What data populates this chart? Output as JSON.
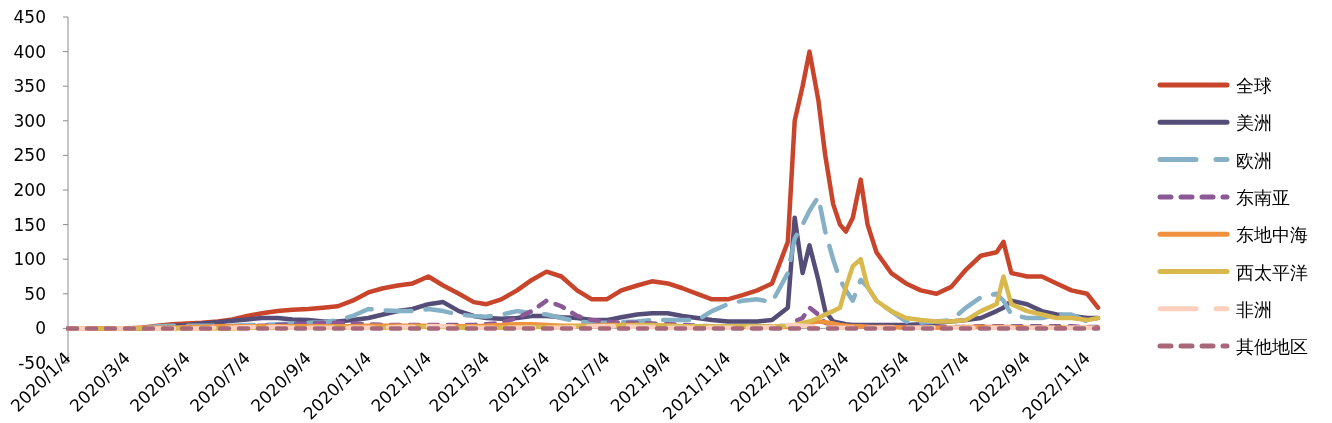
{
  "chart_data": {
    "type": "line",
    "x": [
      "2020-01-04",
      "2020-01-19",
      "2020-02-04",
      "2020-02-19",
      "2020-03-04",
      "2020-03-19",
      "2020-04-04",
      "2020-04-19",
      "2020-05-04",
      "2020-05-19",
      "2020-06-04",
      "2020-06-19",
      "2020-07-04",
      "2020-07-19",
      "2020-08-04",
      "2020-08-19",
      "2020-09-04",
      "2020-09-19",
      "2020-10-04",
      "2020-10-19",
      "2020-11-04",
      "2020-11-19",
      "2020-12-04",
      "2020-12-19",
      "2021-01-04",
      "2021-01-19",
      "2021-02-04",
      "2021-02-19",
      "2021-03-04",
      "2021-03-19",
      "2021-04-04",
      "2021-04-19",
      "2021-05-04",
      "2021-05-19",
      "2021-06-04",
      "2021-06-19",
      "2021-07-04",
      "2021-07-19",
      "2021-08-04",
      "2021-08-19",
      "2021-09-04",
      "2021-09-19",
      "2021-10-04",
      "2021-10-19",
      "2021-11-04",
      "2021-11-19",
      "2021-12-04",
      "2021-12-19",
      "2022-01-04",
      "2022-01-11",
      "2022-01-19",
      "2022-01-26",
      "2022-02-04",
      "2022-02-11",
      "2022-02-19",
      "2022-02-26",
      "2022-03-04",
      "2022-03-11",
      "2022-03-19",
      "2022-03-26",
      "2022-04-04",
      "2022-04-19",
      "2022-05-04",
      "2022-05-19",
      "2022-06-04",
      "2022-06-19",
      "2022-07-04",
      "2022-07-19",
      "2022-08-04",
      "2022-08-11",
      "2022-08-19",
      "2022-09-04",
      "2022-09-19",
      "2022-10-04",
      "2022-10-19",
      "2022-11-04",
      "2022-11-15"
    ],
    "series": [
      {
        "name": "全球",
        "color": "#c8442a",
        "line_style": "solid",
        "values": [
          0,
          0,
          0,
          0,
          0,
          1,
          4,
          6,
          7,
          8,
          10,
          13,
          18,
          22,
          25,
          27,
          28,
          30,
          32,
          40,
          52,
          58,
          62,
          65,
          75,
          62,
          50,
          38,
          35,
          42,
          55,
          70,
          82,
          75,
          55,
          42,
          42,
          55,
          62,
          68,
          65,
          58,
          50,
          42,
          42,
          48,
          55,
          65,
          125,
          300,
          350,
          400,
          330,
          250,
          180,
          150,
          140,
          160,
          215,
          150,
          110,
          80,
          65,
          55,
          50,
          60,
          85,
          105,
          110,
          125,
          80,
          75,
          75,
          65,
          55,
          50,
          30
        ]
      },
      {
        "name": "美洲",
        "color": "#544d78",
        "line_style": "solid",
        "values": [
          0,
          0,
          0,
          0,
          0,
          0,
          2,
          4,
          5,
          7,
          9,
          11,
          13,
          15,
          15,
          13,
          12,
          10,
          10,
          12,
          15,
          20,
          25,
          28,
          35,
          38,
          25,
          18,
          15,
          14,
          15,
          18,
          18,
          16,
          15,
          12,
          12,
          16,
          20,
          22,
          22,
          18,
          15,
          12,
          10,
          10,
          10,
          12,
          30,
          160,
          80,
          120,
          70,
          25,
          10,
          8,
          6,
          5,
          5,
          5,
          5,
          5,
          5,
          6,
          8,
          10,
          12,
          15,
          25,
          30,
          40,
          35,
          25,
          20,
          18,
          15,
          15
        ]
      },
      {
        "name": "欧洲",
        "color": "#85b0c6",
        "line_style": "dashed",
        "values": [
          0,
          0,
          0,
          0,
          0,
          1,
          3,
          4,
          4,
          4,
          4,
          4,
          5,
          5,
          6,
          7,
          8,
          9,
          12,
          18,
          28,
          26,
          25,
          25,
          28,
          25,
          20,
          18,
          17,
          20,
          25,
          22,
          20,
          15,
          10,
          8,
          8,
          9,
          10,
          12,
          12,
          12,
          12,
          25,
          35,
          40,
          42,
          38,
          80,
          130,
          150,
          170,
          190,
          140,
          100,
          70,
          55,
          40,
          70,
          60,
          40,
          25,
          10,
          8,
          10,
          12,
          30,
          45,
          50,
          40,
          20,
          15,
          15,
          20,
          20,
          10,
          5
        ]
      },
      {
        "name": "东南亚",
        "color": "#8b5a96",
        "line_style": "dotted",
        "values": [
          0,
          0,
          0,
          0,
          0,
          0,
          0,
          0,
          1,
          1,
          1,
          2,
          3,
          4,
          5,
          6,
          7,
          8,
          8,
          7,
          6,
          5,
          5,
          5,
          5,
          5,
          5,
          5,
          6,
          8,
          15,
          25,
          40,
          32,
          18,
          12,
          10,
          8,
          8,
          7,
          6,
          5,
          4,
          3,
          3,
          3,
          3,
          3,
          4,
          10,
          15,
          30,
          20,
          8,
          5,
          4,
          3,
          3,
          3,
          3,
          2,
          2,
          2,
          2,
          2,
          2,
          2,
          3,
          3,
          3,
          3,
          3,
          3,
          3,
          3,
          2,
          2
        ]
      },
      {
        "name": "东地中海",
        "color": "#f0913f",
        "line_style": "solid",
        "values": [
          0,
          0,
          0,
          0,
          0,
          1,
          1,
          1,
          2,
          2,
          3,
          3,
          3,
          3,
          3,
          3,
          3,
          3,
          3,
          3,
          4,
          4,
          4,
          4,
          4,
          3,
          3,
          3,
          4,
          5,
          6,
          6,
          5,
          4,
          4,
          4,
          5,
          5,
          5,
          4,
          4,
          3,
          3,
          2,
          2,
          2,
          2,
          2,
          2,
          4,
          6,
          8,
          10,
          9,
          7,
          5,
          4,
          3,
          3,
          2,
          2,
          2,
          1,
          1,
          1,
          1,
          2,
          2,
          2,
          2,
          2,
          1,
          1,
          1,
          1,
          1,
          1
        ]
      },
      {
        "name": "西太平洋",
        "color": "#d9b84e",
        "line_style": "solid",
        "values": [
          0,
          0,
          0,
          0,
          0,
          0,
          0,
          0,
          0,
          0,
          0,
          0,
          1,
          1,
          1,
          1,
          1,
          1,
          1,
          1,
          1,
          1,
          1,
          2,
          2,
          2,
          1,
          1,
          1,
          1,
          2,
          2,
          2,
          2,
          3,
          3,
          4,
          4,
          5,
          5,
          4,
          3,
          3,
          3,
          3,
          3,
          3,
          3,
          3,
          5,
          8,
          10,
          15,
          20,
          25,
          30,
          60,
          90,
          100,
          60,
          40,
          25,
          15,
          12,
          10,
          10,
          12,
          25,
          35,
          75,
          35,
          25,
          20,
          15,
          15,
          12,
          15
        ]
      },
      {
        "name": "非洲",
        "color": "#fdd0bd",
        "line_style": "dashed",
        "values": [
          0,
          0,
          0,
          0,
          0,
          0,
          0,
          0,
          0,
          0,
          1,
          1,
          2,
          2,
          2,
          1,
          1,
          1,
          1,
          1,
          1,
          1,
          2,
          2,
          3,
          3,
          2,
          1,
          1,
          1,
          1,
          1,
          1,
          1,
          2,
          3,
          3,
          3,
          2,
          2,
          1,
          1,
          1,
          1,
          1,
          1,
          1,
          2,
          5,
          5,
          4,
          3,
          2,
          1,
          1,
          1,
          1,
          1,
          1,
          1,
          1,
          1,
          1,
          1,
          1,
          1,
          1,
          1,
          1,
          1,
          1,
          1,
          1,
          1,
          1,
          1,
          1
        ]
      },
      {
        "name": "其他地区",
        "color": "#a8687a",
        "line_style": "dotted",
        "values": [
          0,
          0,
          0,
          0,
          0,
          0,
          0,
          0,
          0,
          0,
          0,
          0,
          0,
          0,
          0,
          0,
          0,
          0,
          0,
          0,
          0,
          0,
          0,
          0,
          0,
          0,
          0,
          0,
          0,
          0,
          0,
          0,
          0,
          0,
          0,
          0,
          0,
          0,
          0,
          0,
          0,
          0,
          0,
          0,
          0,
          0,
          0,
          0,
          0,
          0,
          0,
          0,
          0,
          0,
          0,
          0,
          0,
          0,
          0,
          0,
          0,
          0,
          0,
          0,
          0,
          0,
          0,
          0,
          0,
          0,
          0,
          0,
          0,
          0,
          0,
          0,
          0
        ]
      }
    ],
    "xlim": [
      "2020-01-04",
      "2022-11-15"
    ],
    "xticks": [
      {
        "value": "2020-01-04",
        "label": "2020/1/4"
      },
      {
        "value": "2020-03-04",
        "label": "2020/3/4"
      },
      {
        "value": "2020-05-04",
        "label": "2020/5/4"
      },
      {
        "value": "2020-07-04",
        "label": "2020/7/4"
      },
      {
        "value": "2020-09-04",
        "label": "2020/9/4"
      },
      {
        "value": "2020-11-04",
        "label": "2020/11/4"
      },
      {
        "value": "2021-01-04",
        "label": "2021/1/4"
      },
      {
        "value": "2021-03-04",
        "label": "2021/3/4"
      },
      {
        "value": "2021-05-04",
        "label": "2021/5/4"
      },
      {
        "value": "2021-07-04",
        "label": "2021/7/4"
      },
      {
        "value": "2021-09-04",
        "label": "2021/9/4"
      },
      {
        "value": "2021-11-04",
        "label": "2021/11/4"
      },
      {
        "value": "2022-01-04",
        "label": "2022/1/4"
      },
      {
        "value": "2022-03-04",
        "label": "2022/3/4"
      },
      {
        "value": "2022-05-04",
        "label": "2022/5/4"
      },
      {
        "value": "2022-07-04",
        "label": "2022/7/4"
      },
      {
        "value": "2022-09-04",
        "label": "2022/9/4"
      },
      {
        "value": "2022-11-04",
        "label": "2022/11/4"
      }
    ],
    "ylim": [
      -50,
      450
    ],
    "yticks": [
      -50,
      0,
      50,
      100,
      150,
      200,
      250,
      300,
      350,
      400,
      450
    ],
    "grid": false,
    "legend": "right"
  }
}
